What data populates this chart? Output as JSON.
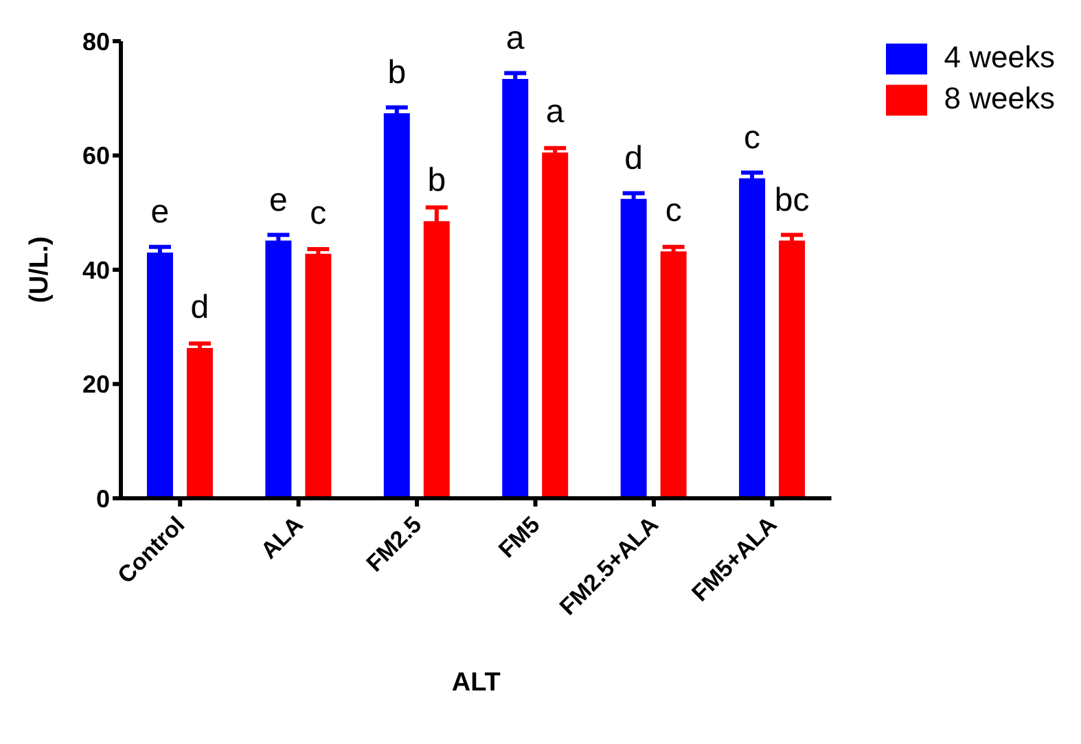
{
  "chart_data": {
    "type": "bar",
    "xlabel": "ALT",
    "ylabel": "(U/L.)",
    "categories": [
      "Control",
      "ALA",
      "FM2.5",
      "FM5",
      "FM2.5+ALA",
      "FM5+ALA"
    ],
    "series": [
      {
        "name": "4 weeks",
        "color": "#0000ff",
        "values": [
          43,
          45.1,
          67.4,
          73.4,
          52.4,
          56
        ],
        "errors": [
          1,
          1,
          1,
          1,
          1,
          1
        ],
        "value_labels": [
          "e",
          "e",
          "b",
          "a",
          "d",
          "c"
        ]
      },
      {
        "name": "8 weeks",
        "color": "#ff0000",
        "values": [
          26.3,
          42.8,
          48.5,
          60.5,
          43.2,
          45.1
        ],
        "errors": [
          0.8,
          0.8,
          2.4,
          0.8,
          0.8,
          1
        ],
        "value_labels": [
          "d",
          "c",
          "b",
          "a",
          "c",
          "bc"
        ]
      }
    ],
    "ylim": [
      0,
      80
    ],
    "yticks": [
      0,
      20,
      40,
      60,
      80
    ],
    "grid": false,
    "legend": "top right"
  }
}
